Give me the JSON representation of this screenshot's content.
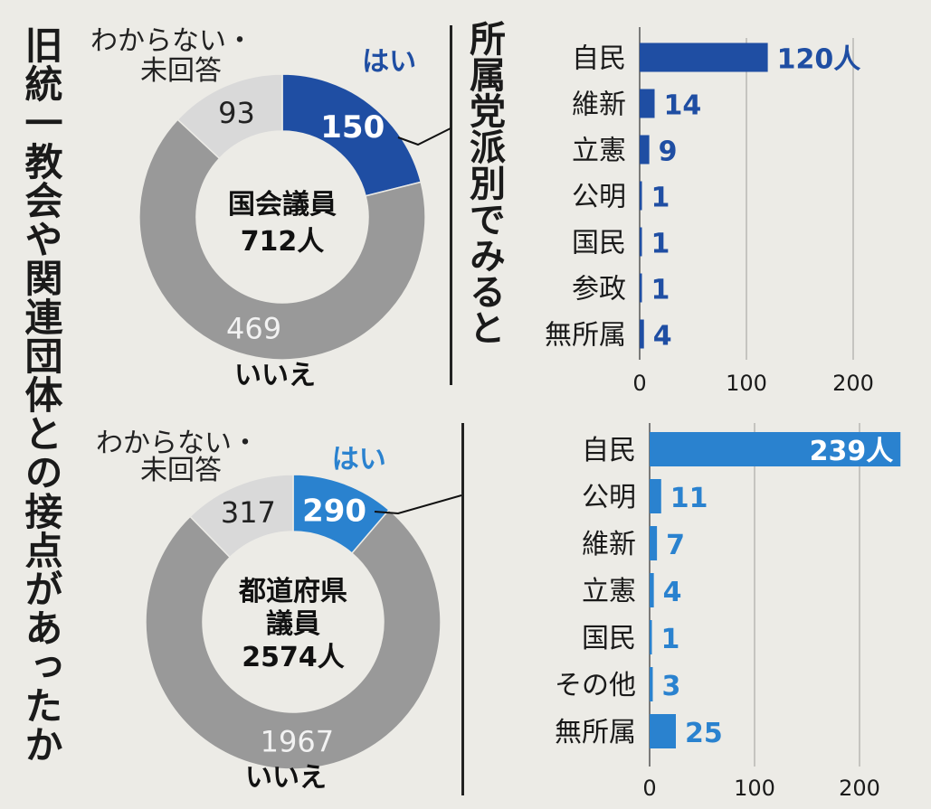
{
  "title": "旧統一教会や関連団体との接点があったか",
  "subtitle": "所属党派別でみると",
  "colors": {
    "dark_blue": "#1f4ea3",
    "light_blue": "#2a82cf",
    "gray": "#999999",
    "light_gray": "#d9d9d9"
  },
  "chart_data": [
    {
      "type": "pie",
      "center_label": [
        "国会議員",
        "712人"
      ],
      "slices": [
        {
          "label": "はい",
          "value": 150
        },
        {
          "label": "いいえ",
          "value": 469
        },
        {
          "label": "わからない・未回答",
          "value": 93
        }
      ],
      "unknown_label_lines": [
        "わからない・",
        "未回答"
      ]
    },
    {
      "type": "bar",
      "categories": [
        "自民",
        "維新",
        "立憲",
        "公明",
        "国民",
        "参政",
        "無所属"
      ],
      "values": [
        120,
        14,
        9,
        1,
        1,
        1,
        4
      ],
      "value_labels": [
        "120人",
        "14",
        "9",
        "1",
        "1",
        "1",
        "4"
      ],
      "xticks": [
        0,
        100,
        200
      ],
      "xlim": [
        0,
        240
      ]
    },
    {
      "type": "pie",
      "center_label": [
        "都道府県",
        "議員",
        "2574人"
      ],
      "slices": [
        {
          "label": "はい",
          "value": 290
        },
        {
          "label": "いいえ",
          "value": 1967
        },
        {
          "label": "わからない・未回答",
          "value": 317
        }
      ],
      "unknown_label_lines": [
        "わからない・",
        "未回答"
      ]
    },
    {
      "type": "bar",
      "categories": [
        "自民",
        "公明",
        "維新",
        "立憲",
        "国民",
        "その他",
        "無所属"
      ],
      "values": [
        239,
        11,
        7,
        4,
        1,
        3,
        25
      ],
      "value_labels": [
        "239人",
        "11",
        "7",
        "4",
        "1",
        "3",
        "25"
      ],
      "xticks": [
        0,
        100,
        200
      ],
      "xlim": [
        0,
        240
      ]
    }
  ]
}
